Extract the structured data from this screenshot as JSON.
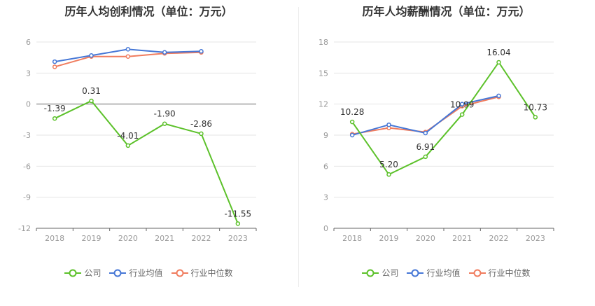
{
  "colors": {
    "company": "#5cc12a",
    "industry_avg": "#4677d6",
    "industry_median": "#f07c5e",
    "grid": "#e6e6e6",
    "axis_text": "#999999",
    "label_text": "#333333"
  },
  "legend": [
    {
      "key": "company",
      "label": "公司"
    },
    {
      "key": "industry_avg",
      "label": "行业均值"
    },
    {
      "key": "industry_median",
      "label": "行业中位数"
    }
  ],
  "chart_data": [
    {
      "type": "line",
      "title": "历年人均创利情况（单位：万元）",
      "x": [
        "2018",
        "2019",
        "2020",
        "2021",
        "2022",
        "2023"
      ],
      "ylim": [
        -12,
        6
      ],
      "yticks": [
        6,
        3,
        0,
        -3,
        -6,
        -9,
        -12
      ],
      "grid": true,
      "legend_position": "bottom",
      "series": [
        {
          "key": "company",
          "name": "公司",
          "values": [
            -1.39,
            0.31,
            -4.01,
            -1.9,
            -2.86,
            -11.55
          ],
          "labels": [
            "-1.39",
            "0.31",
            "-4.01",
            "-1.90",
            "-2.86",
            "-11.55"
          ]
        },
        {
          "key": "industry_avg",
          "name": "行业均值",
          "values": [
            4.1,
            4.7,
            5.3,
            5.0,
            5.1,
            null
          ]
        },
        {
          "key": "industry_median",
          "name": "行业中位数",
          "values": [
            3.6,
            4.6,
            4.6,
            4.9,
            5.0,
            null
          ]
        }
      ]
    },
    {
      "type": "line",
      "title": "历年人均薪酬情况（单位：万元）",
      "x": [
        "2018",
        "2019",
        "2020",
        "2021",
        "2022",
        "2023"
      ],
      "ylim": [
        0,
        18
      ],
      "yticks": [
        18,
        15,
        12,
        9,
        6,
        3,
        0
      ],
      "grid": true,
      "legend_position": "bottom",
      "series": [
        {
          "key": "company",
          "name": "公司",
          "values": [
            10.28,
            5.2,
            6.91,
            10.99,
            16.04,
            10.73
          ],
          "labels": [
            "10.28",
            "5.20",
            "6.91",
            "10.99",
            "16.04",
            "10.73"
          ]
        },
        {
          "key": "industry_avg",
          "name": "行业均值",
          "values": [
            9.0,
            10.0,
            9.2,
            12.0,
            12.8,
            null
          ]
        },
        {
          "key": "industry_median",
          "name": "行业中位数",
          "values": [
            9.1,
            9.7,
            9.3,
            11.8,
            12.7,
            null
          ]
        }
      ]
    }
  ]
}
